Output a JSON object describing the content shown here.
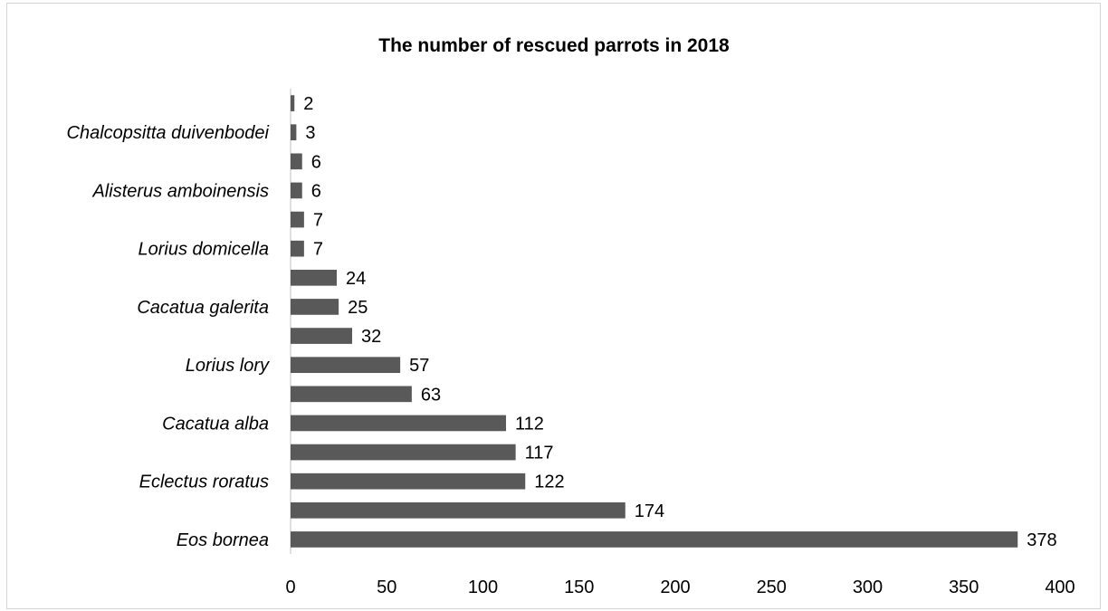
{
  "chart_data": {
    "type": "bar",
    "orientation": "horizontal",
    "title": "The number of rescued parrots in 2018",
    "xlabel": "",
    "ylabel": "",
    "xlim": [
      0,
      400
    ],
    "xticks": [
      0,
      50,
      100,
      150,
      200,
      250,
      300,
      350,
      400
    ],
    "grid": false,
    "legend": "none",
    "bar_color": "#595959",
    "categories": [
      "Eos bornea",
      "",
      "Eclectus roratus",
      "",
      "Cacatua alba",
      "",
      "Lorius lory",
      "",
      "Cacatua galerita",
      "",
      "Lorius domicella",
      "",
      "Alisterus amboinensis",
      "",
      "Chalcopsitta duivenbodei",
      ""
    ],
    "values": [
      378,
      174,
      122,
      117,
      112,
      63,
      57,
      32,
      25,
      24,
      7,
      7,
      6,
      6,
      3,
      2
    ]
  }
}
